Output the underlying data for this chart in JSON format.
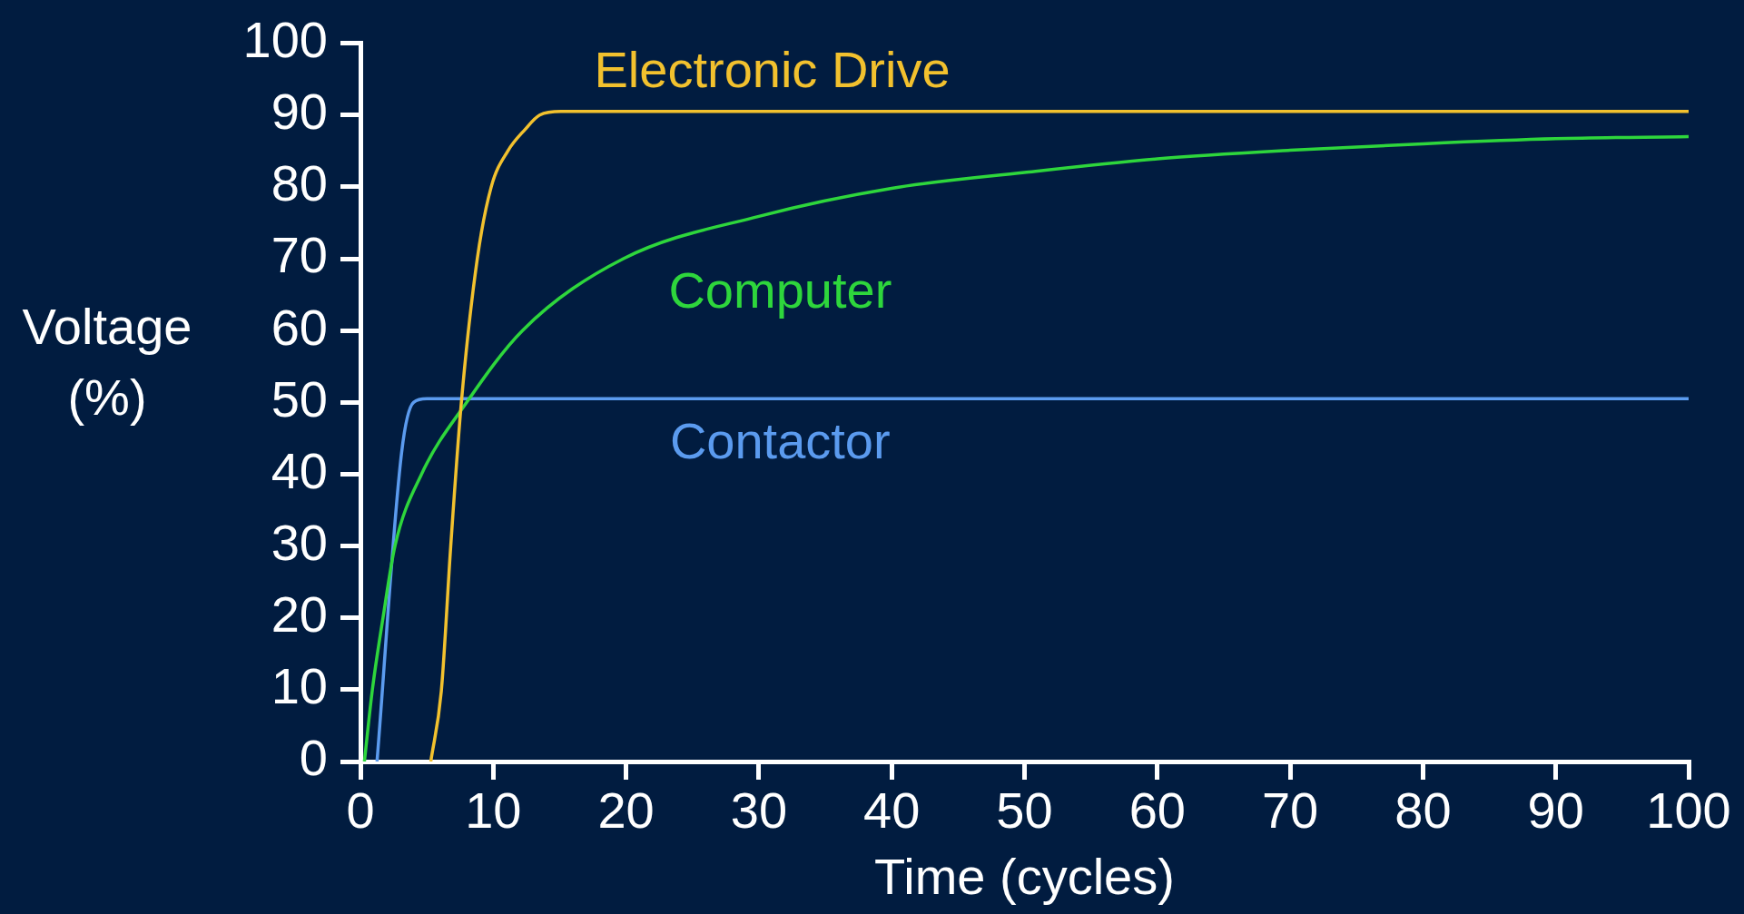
{
  "chart_data": {
    "type": "line",
    "xlabel": "Time (cycles)",
    "ylabel": "Voltage (%)",
    "xlim": [
      0,
      100
    ],
    "ylim": [
      0,
      100
    ],
    "xticks": [
      0,
      10,
      20,
      30,
      40,
      50,
      60,
      70,
      80,
      90,
      100
    ],
    "yticks": [
      0,
      10,
      20,
      30,
      40,
      50,
      60,
      70,
      80,
      90,
      100
    ],
    "grid": false,
    "legend": false,
    "marker": "none",
    "line_style": "solid",
    "series": [
      {
        "name": "Electronic Drive",
        "color": "#f2c12e",
        "x": [
          5.3,
          6.1,
          6.8,
          7.6,
          8.8,
          9.85,
          11.1,
          12.4,
          13.5,
          15.1,
          100
        ],
        "values": [
          0,
          10,
          30,
          50,
          70,
          80,
          85,
          88,
          90,
          90.5,
          90.5
        ]
      },
      {
        "name": "Computer",
        "color": "#2ed63c",
        "x": [
          0.3,
          0.9,
          1.7,
          2.6,
          4.6,
          8,
          12.2,
          19.8,
          30,
          40,
          50,
          60,
          70,
          80,
          90,
          100
        ],
        "values": [
          0,
          10,
          20,
          30,
          40,
          50,
          60,
          70,
          75.9,
          79.8,
          82,
          83.9,
          85.1,
          86,
          86.7,
          87
        ]
      },
      {
        "name": "Contactor",
        "color": "#5b9bef",
        "x": [
          1.25,
          3.1,
          4,
          5,
          100
        ],
        "values": [
          0,
          43,
          50,
          50.5,
          50.5
        ]
      }
    ]
  }
}
